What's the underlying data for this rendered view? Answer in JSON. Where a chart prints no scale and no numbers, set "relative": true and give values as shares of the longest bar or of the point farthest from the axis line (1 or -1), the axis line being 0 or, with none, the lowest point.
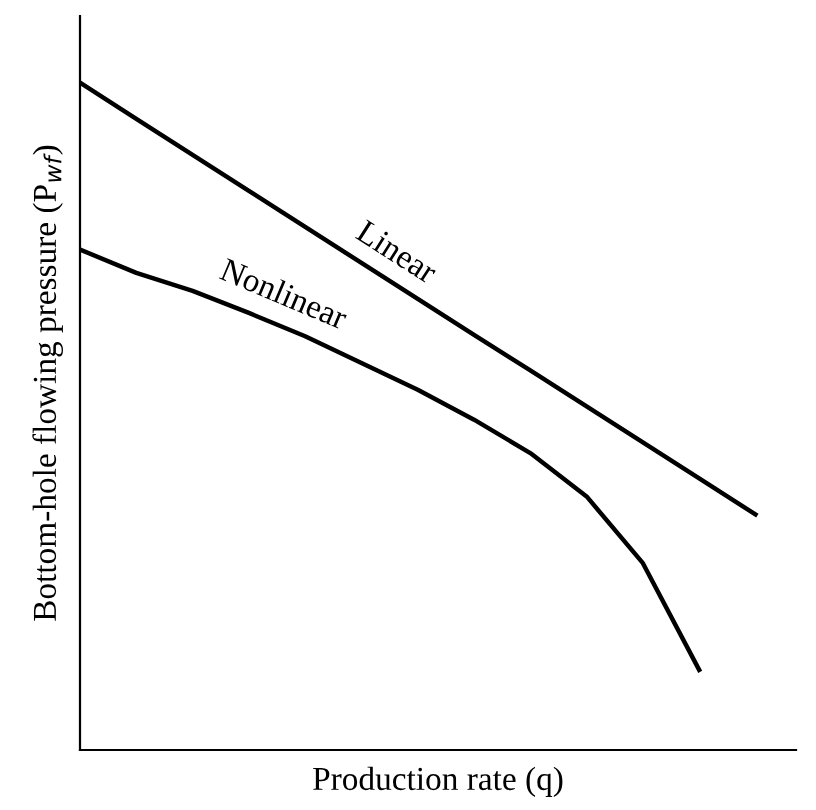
{
  "chart_data": {
    "type": "line",
    "relative": true,
    "xlabel": "Production rate (q)",
    "ylabel": "Bottom-hole flowing pressure (P$_{wf}$)",
    "categories": [
      null,
      null,
      null,
      null,
      null,
      null,
      null,
      null,
      null,
      null,
      null,
      null,
      null
    ],
    "series": [
      {
        "name": "Linear",
        "color": "#000000",
        "values": [
          1.0,
          0.946,
          0.892,
          0.838,
          0.784,
          0.73,
          0.676,
          0.622,
          0.569,
          0.515,
          0.461,
          0.407,
          0.353
        ]
      },
      {
        "name": "Nonlinear",
        "color": "#000000",
        "values": [
          0.75,
          0.715,
          0.688,
          0.655,
          0.62,
          0.58,
          0.54,
          0.495,
          0.445,
          0.38,
          0.28,
          0.12,
          null
        ]
      }
    ],
    "legend": false,
    "marker": "none",
    "line_style": "solid"
  }
}
